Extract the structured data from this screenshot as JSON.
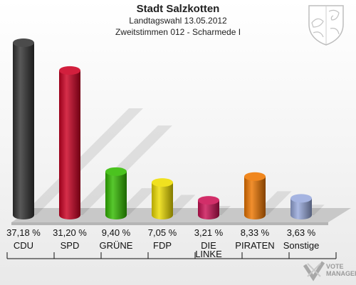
{
  "header": {
    "title": "Stadt Salzkotten",
    "subtitle": "Landtagswahl 13.05.2012",
    "subtitle2": "Zweitstimmen 012 - Scharmede I"
  },
  "watermark": {
    "line1": "VOTE",
    "line2": "MANAGER"
  },
  "chart_data": {
    "type": "bar",
    "title": "Stadt Salzkotten",
    "subtitle": "Landtagswahl 13.05.2012 / Zweitstimmen 012 - Scharmede I",
    "categories": [
      "CDU",
      "SPD",
      "GRÜNE",
      "FDP",
      "DIE LINKE",
      "PIRATEN",
      "Sonstige"
    ],
    "category_lines": [
      [
        "CDU"
      ],
      [
        "SPD"
      ],
      [
        "GRÜNE"
      ],
      [
        "FDP"
      ],
      [
        "DIE",
        "LINKE"
      ],
      [
        "PIRATEN"
      ],
      [
        "Sonstige"
      ]
    ],
    "values": [
      37.18,
      31.2,
      9.4,
      7.05,
      3.21,
      8.33,
      3.63
    ],
    "value_labels": [
      "37,18 %",
      "31,20 %",
      "9,40 %",
      "7,05 %",
      "3,21 %",
      "8,33 %",
      "3,63 %"
    ],
    "colors": [
      "#333333",
      "#cc0022",
      "#33bb00",
      "#eedd00",
      "#cc1155",
      "#ee7700",
      "#99aadd"
    ],
    "xlabel": "",
    "ylabel": "",
    "ylim": [
      0,
      40
    ],
    "grid": false,
    "legend": "none"
  }
}
